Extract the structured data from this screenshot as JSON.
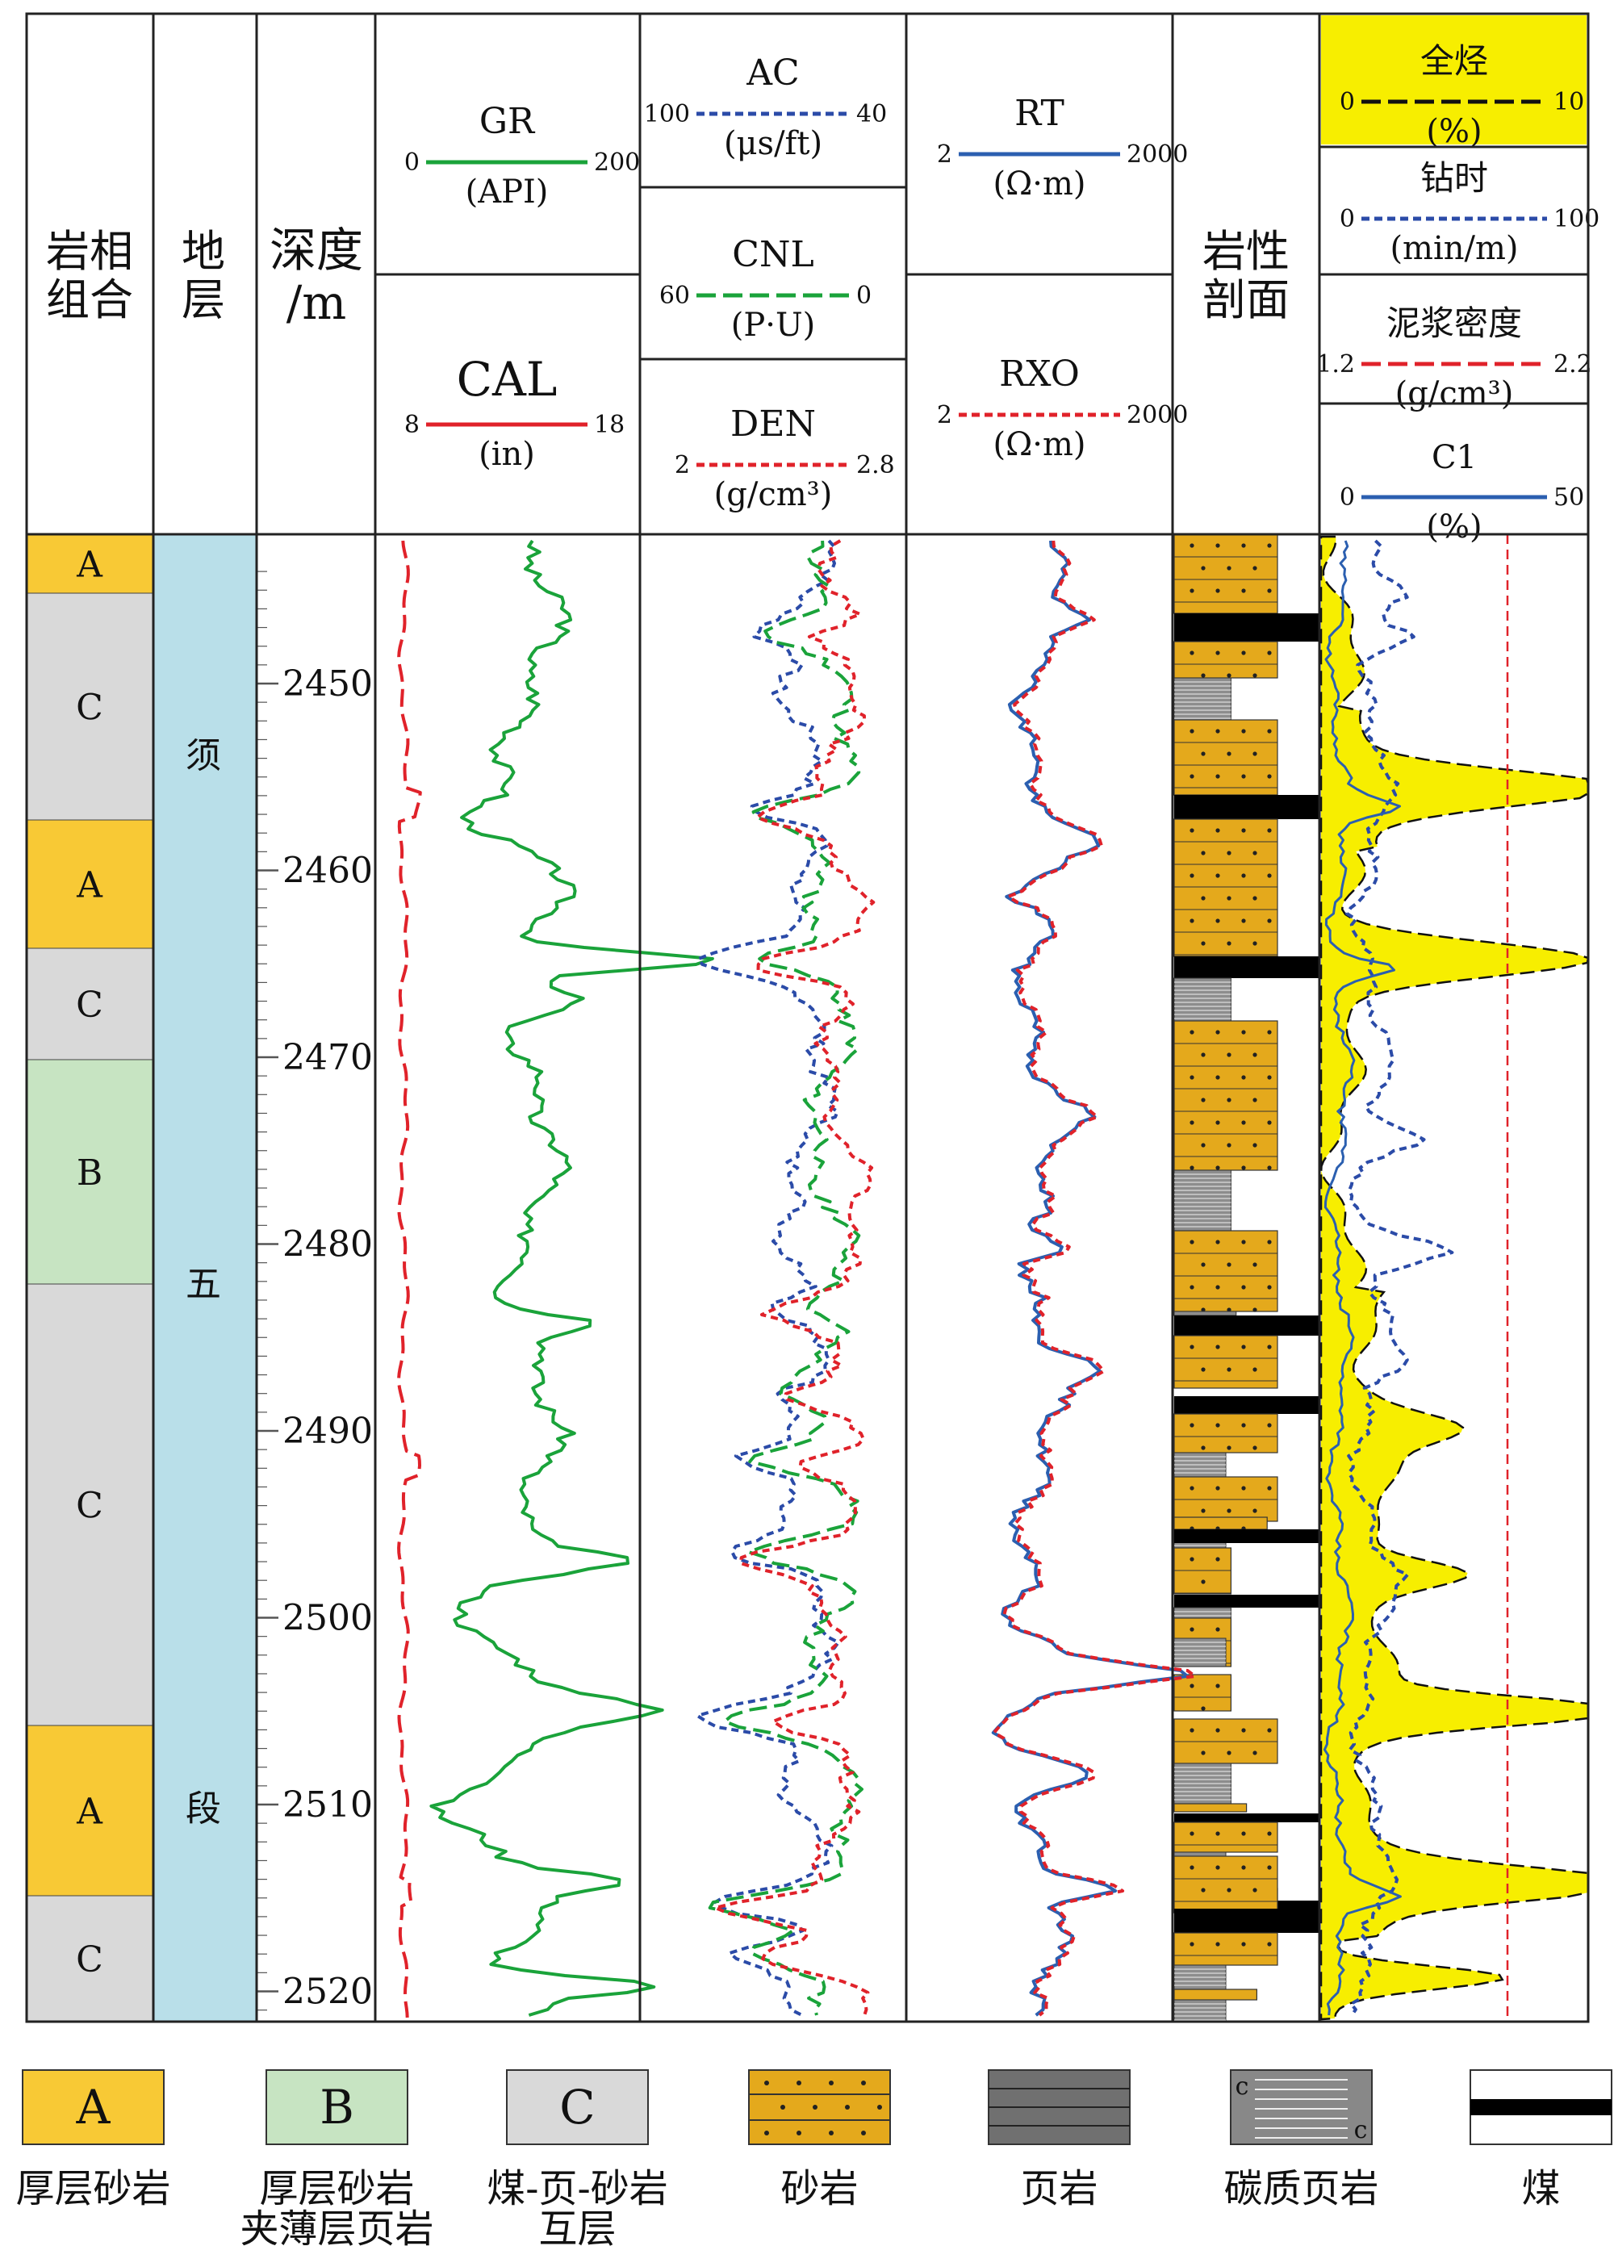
{
  "header": {
    "col_facies": "岩相\n组合",
    "col_strata": "地层",
    "col_depth": "深度\n/m",
    "col_lith": "岩性\n剖面",
    "tracks": [
      {
        "name": "GR",
        "unit": "(API)",
        "min": "0",
        "max": "200",
        "color": "#1aa33a",
        "dash": "solid"
      },
      {
        "name": "CAL",
        "unit": "(in)",
        "min": "8",
        "max": "18",
        "color": "#e0222a",
        "dash": "solid"
      },
      {
        "name": "AC",
        "unit": "(μs/ft)",
        "min": "100",
        "max": "40",
        "color": "#2b4ba8",
        "dash": "dot"
      },
      {
        "name": "CNL",
        "unit": "(P·U)",
        "min": "60",
        "max": "0",
        "color": "#1aa33a",
        "dash": "dash"
      },
      {
        "name": "DEN",
        "unit": "(g/cm³)",
        "min": "2",
        "max": "2.8",
        "color": "#e0222a",
        "dash": "dot"
      },
      {
        "name": "RT",
        "unit": "(Ω·m)",
        "min": "2",
        "max": "2000",
        "color": "#2b5fb0",
        "dash": "solid"
      },
      {
        "name": "RXO",
        "unit": "(Ω·m)",
        "min": "2",
        "max": "2000",
        "color": "#e0222a",
        "dash": "dot"
      },
      {
        "name": "全烃",
        "unit": "(%)",
        "min": "0",
        "max": "10",
        "color": "#111111",
        "dash": "dash"
      },
      {
        "name": "钻时",
        "unit": "(min/m)",
        "min": "0",
        "max": "100",
        "color": "#2b4ba8",
        "dash": "dot"
      },
      {
        "name": "泥浆密度",
        "unit": "(g/cm³)",
        "min": "1.2",
        "max": "2.2",
        "color": "#e0222a",
        "dash": "dash"
      },
      {
        "name": "C1",
        "unit": "(%)",
        "min": "0",
        "max": "50",
        "color": "#2b5fb0",
        "dash": "solid"
      }
    ]
  },
  "depth_ticks": [
    "2450",
    "2460",
    "2470",
    "2480",
    "2490",
    "2500",
    "2510",
    "2520"
  ],
  "facies": [
    {
      "label": "A",
      "color": "#f8c935"
    },
    {
      "label": "C",
      "color": "#d9d9d9"
    },
    {
      "label": "A",
      "color": "#f8c935"
    },
    {
      "label": "C",
      "color": "#d9d9d9"
    },
    {
      "label": "B",
      "color": "#c7e4c2"
    },
    {
      "label": "C",
      "color": "#d9d9d9"
    },
    {
      "label": "A",
      "color": "#f8c935"
    },
    {
      "label": "C",
      "color": "#d9d9d9"
    }
  ],
  "strata": {
    "chars": [
      "须",
      "五",
      "段"
    ],
    "color": "#b9dfe9"
  },
  "legend": [
    {
      "type": "box",
      "text": "A",
      "label": "厚层砂岩",
      "color": "#f8c935"
    },
    {
      "type": "box",
      "text": "B",
      "label": "厚层砂岩\n夹薄层页岩",
      "color": "#c7e4c2"
    },
    {
      "type": "box",
      "text": "C",
      "label": "煤-页-砂岩\n互层",
      "color": "#d9d9d9"
    },
    {
      "type": "sand",
      "text": "",
      "label": "砂岩",
      "color": "#e4a91c"
    },
    {
      "type": "shale",
      "text": "",
      "label": "页岩",
      "color": "#707070"
    },
    {
      "type": "carb",
      "text": "c",
      "label": "碳质页岩",
      "color": "#888888"
    },
    {
      "type": "coal",
      "text": "",
      "label": "煤",
      "color": "#000000"
    }
  ],
  "colors": {
    "sand": "#e4a91c",
    "shale": "#8a8a8a",
    "coal": "#000000",
    "gas_fill": "#f7ee00"
  }
}
